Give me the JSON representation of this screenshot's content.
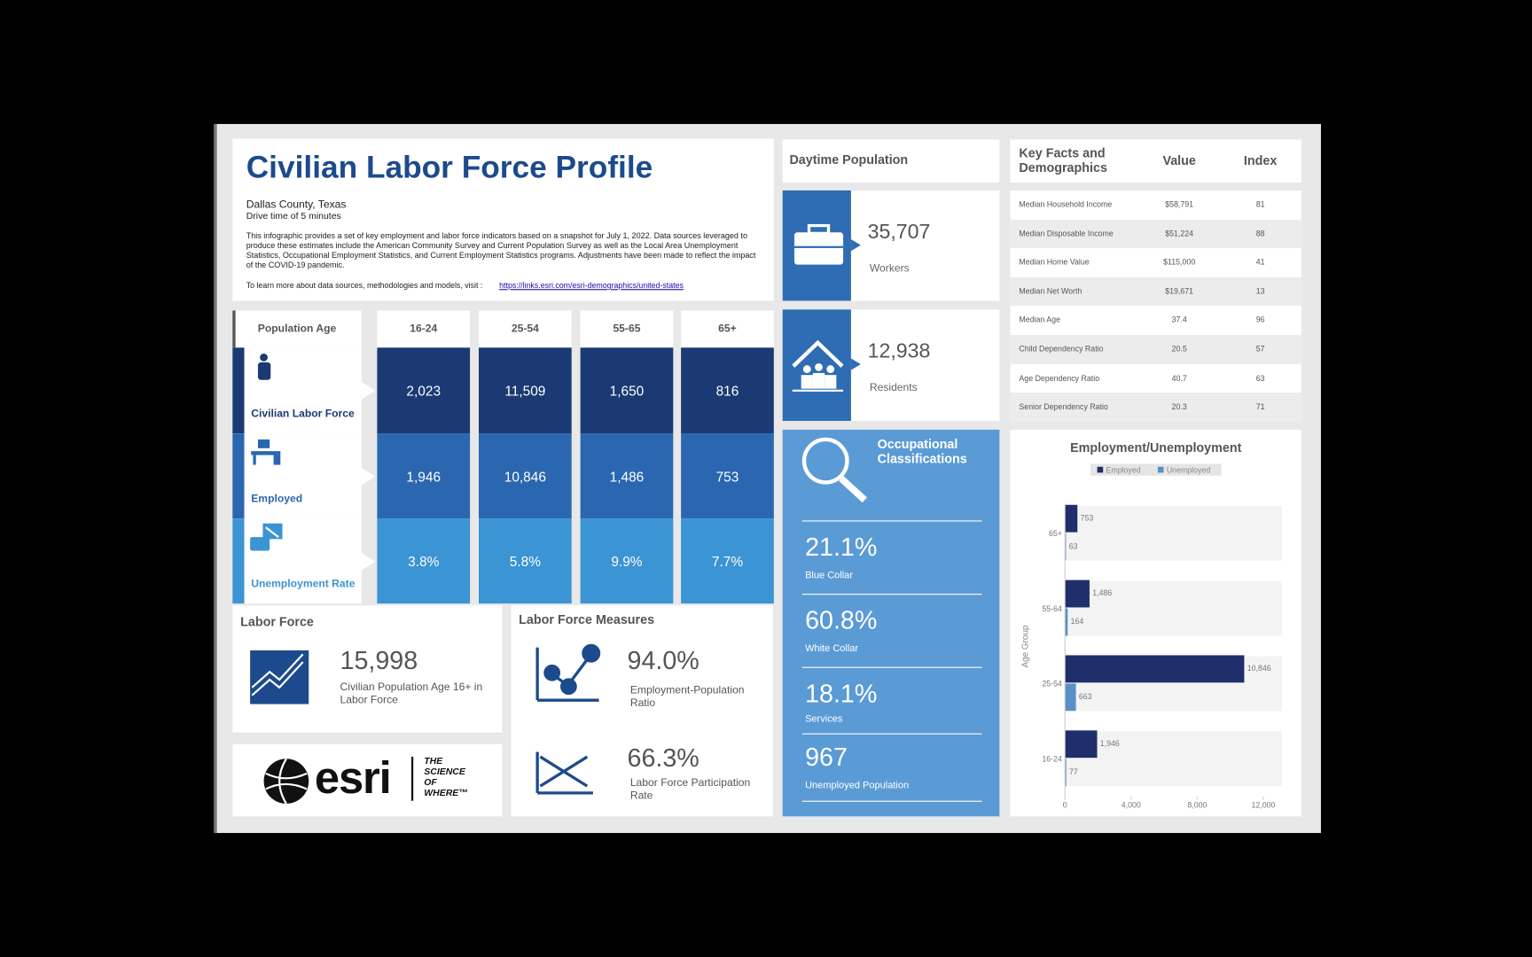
{
  "header": {
    "title": "Civilian Labor Force Profile",
    "location": "Dallas County, Texas",
    "drive_time": "Drive time of 5 minutes",
    "description": "This infographic provides a set of key employment and labor force indicators based on a snapshot for July 1, 2022. Data sources leveraged to produce these estimates include the American Community Survey and Current Population Survey as well as the Local Area Unemployment Statistics, Occupational Employment Statistics, and Current Employment Statistics programs. Adjustments have been made to reflect the impact of the COVID-19 pandemic.",
    "learn_more": "To learn more about data sources, methodologies and models, visit :",
    "link": "https://links.esri.com/esri-demographics/united-states"
  },
  "population_table": {
    "header_label": "Population Age",
    "age_groups": [
      "16-24",
      "25-54",
      "55-65",
      "65+"
    ],
    "rows": [
      {
        "label": "Civilian Labor Force",
        "values": [
          "2,023",
          "11,509",
          "1,650",
          "816"
        ]
      },
      {
        "label": "Employed",
        "values": [
          "1,946",
          "10,846",
          "1,486",
          "753"
        ]
      },
      {
        "label": "Unemployment Rate",
        "values": [
          "3.8%",
          "5.8%",
          "9.9%",
          "7.7%"
        ]
      }
    ]
  },
  "labor_force": {
    "title": "Labor Force",
    "value": "15,998",
    "label": "Civilian Population Age 16+ in Labor Force"
  },
  "measures": {
    "title": "Labor Force Measures",
    "items": [
      {
        "value": "94.0%",
        "label": "Employment-Population Ratio"
      },
      {
        "value": "66.3%",
        "label": "Labor Force Participation Rate"
      }
    ]
  },
  "logo": {
    "name": "esri",
    "tagline": [
      "THE",
      "SCIENCE",
      "OF",
      "WHERE™"
    ]
  },
  "daytime": {
    "title": "Daytime Population",
    "items": [
      {
        "value": "35,707",
        "label": "Workers"
      },
      {
        "value": "12,938",
        "label": "Residents"
      }
    ]
  },
  "occupational": {
    "title": "Occupational Classifications",
    "items": [
      {
        "value": "21.1%",
        "label": "Blue Collar"
      },
      {
        "value": "60.8%",
        "label": "White Collar"
      },
      {
        "value": "18.1%",
        "label": "Services"
      },
      {
        "value": "967",
        "label": "Unemployed Population"
      }
    ]
  },
  "key_facts": {
    "headers": [
      "Key Facts and Demographics",
      "Value",
      "Index"
    ],
    "rows": [
      [
        "Median Household Income",
        "$58,791",
        "81"
      ],
      [
        "Median Disposable Income",
        "$51,224",
        "88"
      ],
      [
        "Median Home Value",
        "$115,000",
        "41"
      ],
      [
        "Median Net Worth",
        "$19,671",
        "13"
      ],
      [
        "Median Age",
        "37.4",
        "96"
      ],
      [
        "Child Dependency Ratio",
        "20.5",
        "57"
      ],
      [
        "Age Dependency Ratio",
        "40.7",
        "63"
      ],
      [
        "Senior Dependency Ratio",
        "20.3",
        "71"
      ]
    ]
  },
  "chart_data": {
    "type": "bar",
    "orientation": "horizontal",
    "title": "Employment/Unemployment",
    "ylabel": "Age Group",
    "categories": [
      "65+",
      "55-64",
      "25-54",
      "16-24"
    ],
    "series": [
      {
        "name": "Employed",
        "color": "#1f2f6b",
        "values": [
          753,
          1486,
          10846,
          1946
        ],
        "value_labels": [
          "753",
          "1,486",
          "10,846",
          "1,946"
        ]
      },
      {
        "name": "Unemployed",
        "color": "#5b8fc7",
        "values": [
          63,
          164,
          663,
          77
        ]
      }
    ],
    "xlim": [
      0,
      12000
    ],
    "xticks": [
      0,
      {
        "value": 4000,
        "label": "4,000"
      },
      {
        "value": 8000,
        "label": "8,000"
      },
      {
        "value": 12000,
        "label": "12,000"
      }
    ],
    "grid": false,
    "legend": "top"
  }
}
